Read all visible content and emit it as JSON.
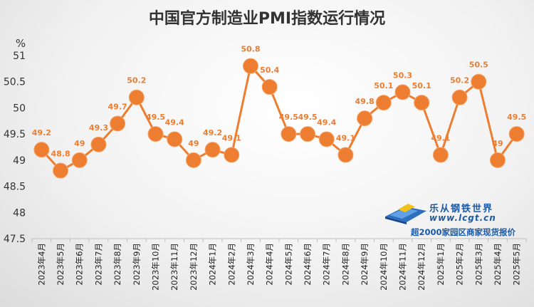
{
  "chart_data": {
    "type": "line",
    "title": "中国官方制造业PMI指数运行情况",
    "ylabel": "%",
    "xlabel": "",
    "ylim": [
      47.5,
      51
    ],
    "yticks": [
      "47.5",
      "48",
      "48.5",
      "49",
      "49.5",
      "50",
      "50.5",
      "51"
    ],
    "grid": false,
    "categories": [
      "2023年4月",
      "2023年5月",
      "2023年6月",
      "2023年7月",
      "2023年8月",
      "2023年9月",
      "2023年10月",
      "2023年11月",
      "2023年12月",
      "2024年1月",
      "2024年2月",
      "2024年3月",
      "2024年4月",
      "2024年5月",
      "2024年6月",
      "2024年7月",
      "2024年8月",
      "2024年9月",
      "2024年10月",
      "2024年11月",
      "2024年12月",
      "2025年1月",
      "2025年2月",
      "2025年3月",
      "2025年4月",
      "2025年5月"
    ],
    "values": [
      49.2,
      48.8,
      49,
      49.3,
      49.7,
      50.2,
      49.5,
      49.4,
      49,
      49.2,
      49.1,
      50.8,
      50.4,
      49.5,
      49.5,
      49.4,
      49.1,
      49.8,
      50.1,
      50.3,
      50.1,
      49.1,
      50.2,
      50.5,
      49,
      49.5
    ],
    "data_labels": [
      "49.2",
      "48.8",
      "49",
      "49.3",
      "49.7",
      "50.2",
      "49.5",
      "49.4",
      "49",
      "49.2",
      "49.1",
      "50.8",
      "50.4",
      "49.5",
      "49.5",
      "49.4",
      "49.1",
      "49.8",
      "50.1",
      "50.3",
      "50.1",
      "49.1",
      "50.2",
      "50.5",
      "49",
      "49.5"
    ]
  },
  "colors": {
    "series": "#ed7d31",
    "label": "#ed7d31",
    "axis": "#333333",
    "logo": "#1a5aa8"
  },
  "logo": {
    "name": "乐从钢铁世界",
    "url": "www.lcgt.cn",
    "tagline": "超2000家园区商家现货报价"
  }
}
